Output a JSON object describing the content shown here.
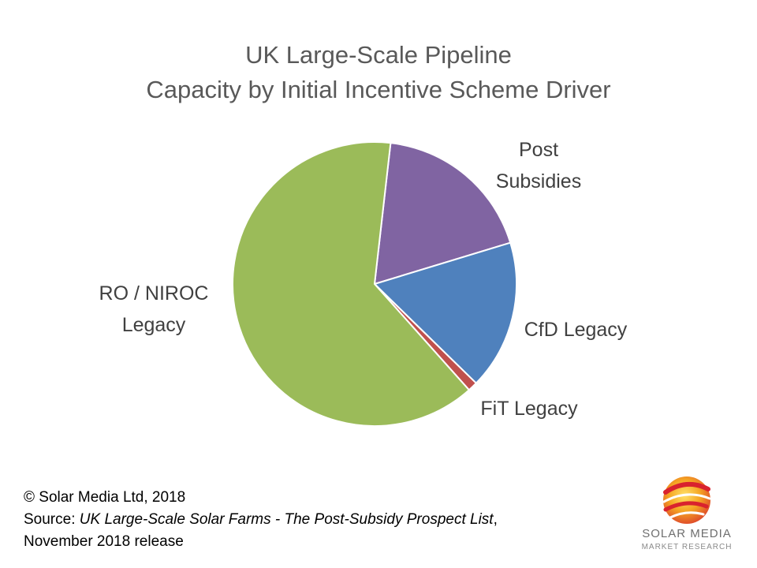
{
  "chart_data": {
    "type": "pie",
    "title": "UK Large-Scale Pipeline",
    "subtitle": "Capacity by Initial Incentive Scheme Driver",
    "slices": [
      {
        "label_lines": [
          "Post",
          "Subsidies"
        ],
        "value": 18.5,
        "color": "#8064A2"
      },
      {
        "label_lines": [
          "CfD Legacy"
        ],
        "value": 17.0,
        "color": "#4F81BD"
      },
      {
        "label_lines": [
          "FiT Legacy"
        ],
        "value": 1.1,
        "color": "#C0504D"
      },
      {
        "label_lines": [
          "RO / NIROC",
          "Legacy"
        ],
        "value": 63.4,
        "color": "#9BBB59"
      }
    ]
  },
  "footer": {
    "copyright": "© Solar Media Ltd, 2018",
    "source_prefix": "Source: ",
    "source_title": "UK Large-Scale Solar Farms - The Post-Subsidy Prospect List",
    "source_suffix": ",",
    "release": "November 2018 release"
  },
  "logo": {
    "icon": "solar-media-sphere-logo",
    "name": "SOLAR MEDIA",
    "tagline": "MARKET RESEARCH"
  }
}
